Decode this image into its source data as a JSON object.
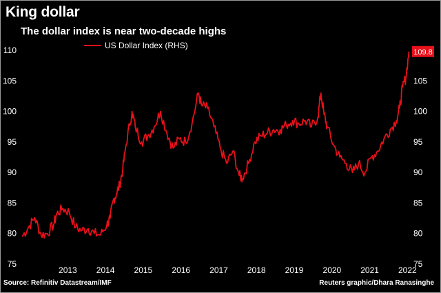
{
  "chart_data": {
    "type": "line",
    "title": "King dollar",
    "subtitle": "The dollar index is near two-decade highs",
    "series": [
      {
        "name": "US Dollar Index (RHS)",
        "color": "#e8101a",
        "x": [
          "2012-04",
          "2012-06",
          "2012-08",
          "2012-10",
          "2012-12",
          "2013-02",
          "2013-03",
          "2013-05",
          "2013-07",
          "2013-09",
          "2013-11",
          "2014-01",
          "2014-03",
          "2014-05",
          "2014-07",
          "2014-08",
          "2014-09",
          "2014-10",
          "2014-11",
          "2014-12",
          "2015-01",
          "2015-03",
          "2015-04",
          "2015-06",
          "2015-08",
          "2015-10",
          "2015-12",
          "2016-02",
          "2016-04",
          "2016-06",
          "2016-08",
          "2016-10",
          "2016-12",
          "2017-01",
          "2017-03",
          "2017-05",
          "2017-07",
          "2017-09",
          "2017-11",
          "2018-01",
          "2018-02",
          "2018-04",
          "2018-06",
          "2018-08",
          "2018-10",
          "2018-12",
          "2019-02",
          "2019-04",
          "2019-06",
          "2019-08",
          "2019-10",
          "2019-12",
          "2020-02",
          "2020-03",
          "2020-04",
          "2020-05",
          "2020-07",
          "2020-09",
          "2020-11",
          "2021-01",
          "2021-03",
          "2021-05",
          "2021-07",
          "2021-09",
          "2021-11",
          "2022-01",
          "2022-03",
          "2022-04",
          "2022-05",
          "2022-06",
          "2022-07"
        ],
        "values": [
          79.5,
          81.0,
          82.6,
          79.8,
          80.0,
          81.5,
          83.2,
          84.1,
          83.5,
          81.0,
          80.5,
          80.8,
          80.0,
          79.8,
          81.5,
          82.5,
          85.5,
          86.5,
          88.0,
          90.5,
          94.5,
          100.0,
          97.5,
          95.0,
          96.0,
          97.5,
          100.0,
          96.5,
          94.0,
          95.5,
          95.0,
          98.0,
          103.0,
          101.0,
          100.5,
          97.5,
          94.0,
          91.5,
          93.5,
          89.5,
          89.0,
          91.5,
          95.0,
          96.0,
          96.5,
          97.0,
          97.0,
          97.8,
          98.5,
          98.0,
          98.5,
          97.5,
          99.0,
          103.0,
          99.5,
          97.5,
          94.5,
          92.5,
          91.5,
          90.0,
          91.5,
          90.0,
          92.5,
          93.5,
          95.5,
          97.0,
          98.5,
          100.5,
          104.0,
          105.5,
          109.8
        ]
      }
    ],
    "last_value_label": "109.8",
    "x_ticks": [
      "2013",
      "2014",
      "2015",
      "2016",
      "2017",
      "2018",
      "2019",
      "2020",
      "2021",
      "2022"
    ],
    "y_ticks": [
      75,
      80,
      85,
      90,
      95,
      100,
      105,
      110
    ],
    "ylim": [
      75,
      110
    ],
    "grid": false,
    "legend_position": "top-left"
  },
  "footer": {
    "source": "Source: Refinitiv Datastream/IMF",
    "credit": "Reuters graphic/Dhara Ranasinghe"
  }
}
